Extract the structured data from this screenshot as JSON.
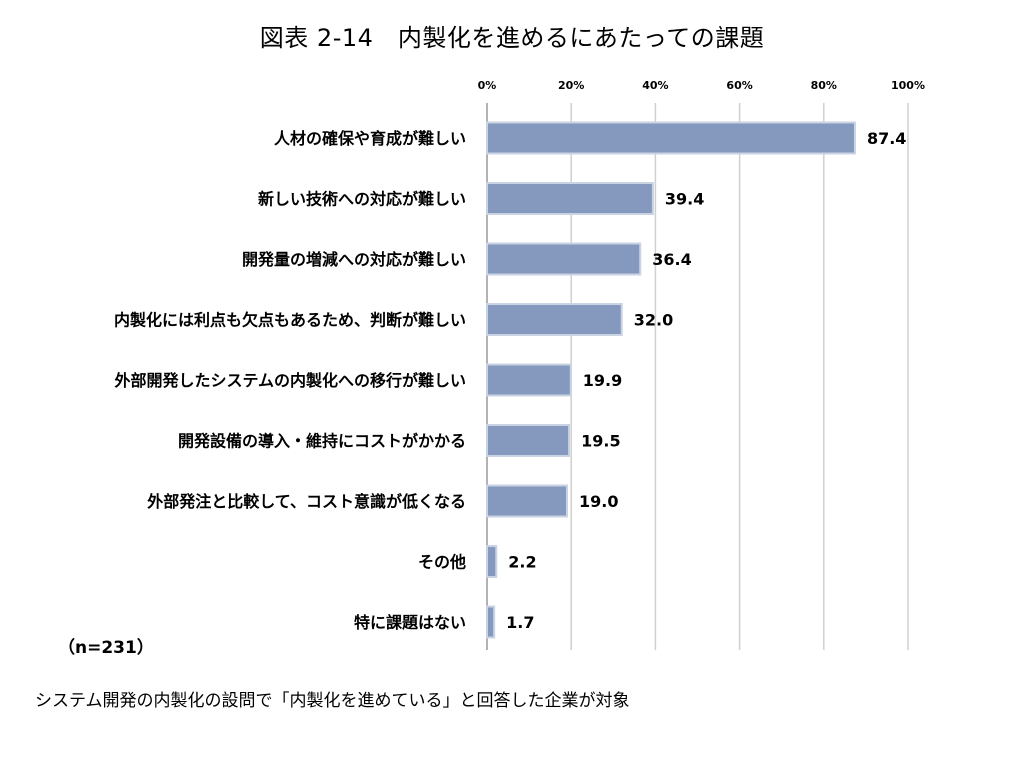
{
  "title": "図表 2-14　内製化を進めるにあたっての課題",
  "sample_note": "（n=231）",
  "footnote": "システム開発の内製化の設問で「内製化を進めている」と回答した企業が対象",
  "chart_data": {
    "type": "bar",
    "orientation": "horizontal",
    "categories": [
      "人材の確保や育成が難しい",
      "新しい技術への対応が難しい",
      "開発量の増減への対応が難しい",
      "内製化には利点も欠点もあるため、判断が難しい",
      "外部開発したシステムの内製化への移行が難しい",
      "開発設備の導入・維持にコストがかかる",
      "外部発注と比較して、コスト意識が低くなる",
      "その他",
      "特に課題はない"
    ],
    "values": [
      87.4,
      39.4,
      36.4,
      32.0,
      19.9,
      19.5,
      19.0,
      2.2,
      1.7
    ],
    "value_labels": [
      "87.4",
      "39.4",
      "36.4",
      "32.0",
      "19.9",
      "19.5",
      "19.0",
      "2.2",
      "1.7"
    ],
    "xlim": [
      0,
      100
    ],
    "xticks": [
      "0%",
      "20%",
      "40%",
      "60%",
      "80%",
      "100%"
    ],
    "xtick_values": [
      0,
      20,
      40,
      60,
      80,
      100
    ],
    "grid": true,
    "bar_color": "#8499bd"
  }
}
